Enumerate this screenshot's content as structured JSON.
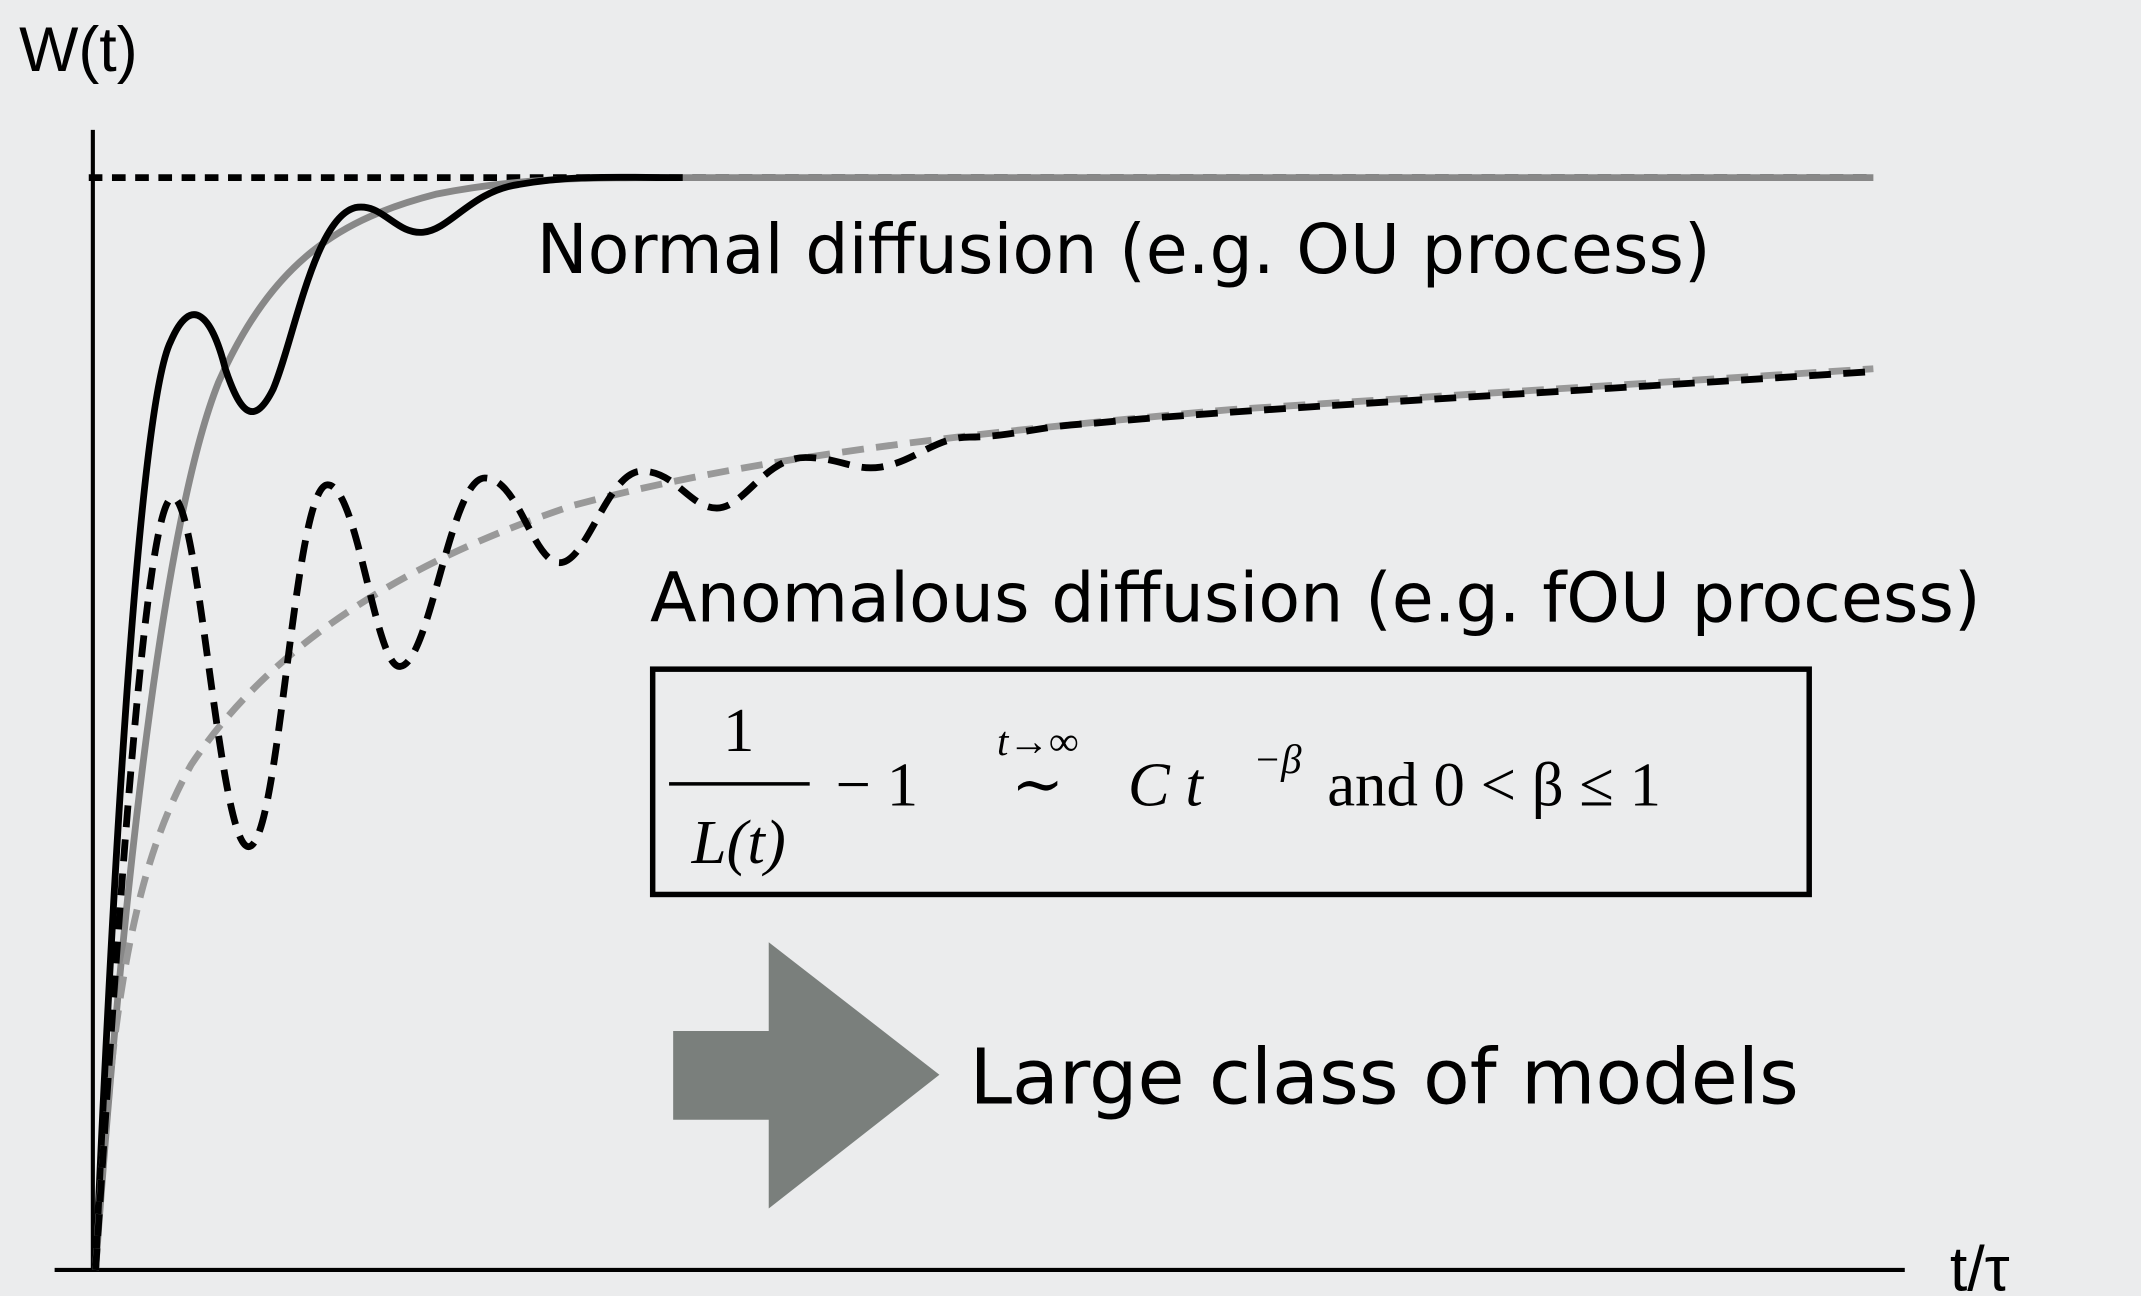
{
  "y_axis_label": "W(t)",
  "x_axis_label": "t/τ",
  "normal_label": "Normal diffusion (e.g. OU process)",
  "anomalous_label": "Anomalous diffusion (e.g. fOU process)",
  "formula": {
    "numerator": "1",
    "denominator": "L(t)",
    "minus_one": "− 1",
    "limit": "t→∞",
    "relation": "∼",
    "term": "C t",
    "exponent": "−β",
    "condition": "and 0 < β ≤ 1"
  },
  "conclusion": "Large class of models"
}
